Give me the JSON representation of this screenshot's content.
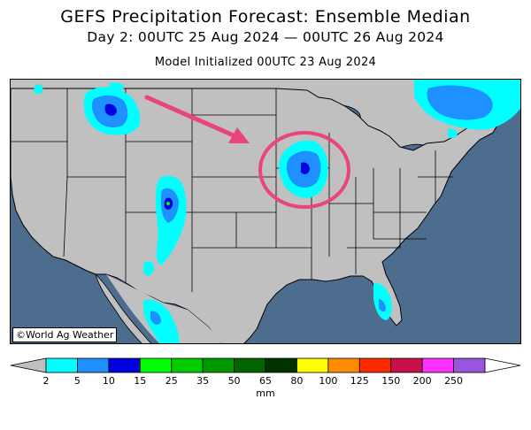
{
  "title": "GEFS Precipitation Forecast: Ensemble Median",
  "subtitle": "Day 2: 00UTC 25 Aug 2024 — 00UTC 26 Aug 2024",
  "init_line": "Model Initialized 00UTC 23 Aug 2024",
  "credit": "©World Ag Weather",
  "colors": {
    "ocean": "#4d6d8f",
    "land": "#c0c0c0",
    "highlight_circle": "#e8457a",
    "arrow": "#e8457a"
  },
  "legend": {
    "units": "mm",
    "ticks": [
      "2",
      "5",
      "10",
      "15",
      "25",
      "35",
      "50",
      "65",
      "80",
      "100",
      "125",
      "150",
      "200",
      "250"
    ],
    "colors": [
      "#00ffff",
      "#1e90ff",
      "#0000e0",
      "#00ff00",
      "#00cc00",
      "#009900",
      "#006400",
      "#003300",
      "#ffff00",
      "#ff8c00",
      "#ff2a00",
      "#c8104a",
      "#ff33ff",
      "#9955dd"
    ]
  },
  "annotations": {
    "highlight": "circle around upper Mississippi valley precipitation",
    "arrow": "pink arrow pointing to circled area"
  }
}
